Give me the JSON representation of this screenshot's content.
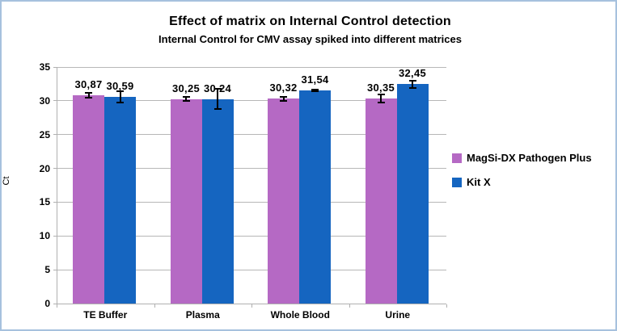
{
  "frame": {
    "border_color": "#a6c1de",
    "background_color": "#ffffff"
  },
  "chart_data": {
    "type": "bar",
    "title": "Effect of matrix on Internal Control detection",
    "subtitle": "Internal Control for CMV assay spiked into different matrices",
    "xlabel": "",
    "ylabel": "Ct",
    "ylim": [
      0,
      35
    ],
    "yticks": [
      0,
      5,
      10,
      15,
      20,
      25,
      30,
      35
    ],
    "grid": true,
    "gridline_color": "#b7b7b7",
    "axis_color": "#b0b0b0",
    "error_bar_color": "#000000",
    "label_color": "#000000",
    "decimal_separator": ",",
    "legend_position": "right",
    "categories": [
      "TE Buffer",
      "Plasma",
      "Whole Blood",
      "Urine"
    ],
    "series": [
      {
        "name": "MagSi-DX Pathogen Plus",
        "color": "#b569c4",
        "values": [
          30.87,
          30.25,
          30.32,
          30.35
        ],
        "value_labels": [
          "30,87",
          "30,25",
          "30,32",
          "30,35"
        ],
        "errors": [
          0.35,
          0.3,
          0.3,
          0.55
        ]
      },
      {
        "name": "Kit X",
        "color": "#1565c0",
        "values": [
          30.59,
          30.24,
          31.54,
          32.45
        ],
        "value_labels": [
          "30,59",
          "30,24",
          "31,54",
          "32,45"
        ],
        "errors": [
          0.85,
          1.5,
          0.12,
          0.55
        ]
      }
    ]
  }
}
